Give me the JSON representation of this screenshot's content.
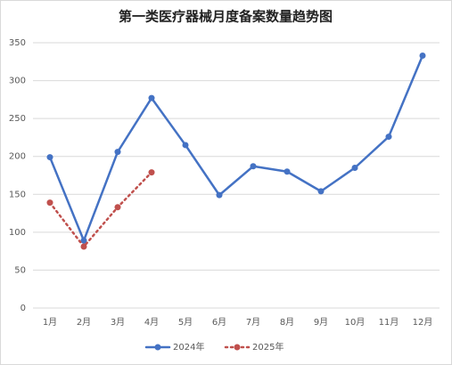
{
  "chart_data": {
    "type": "line",
    "title": "第一类医疗器械月度备案数量趋势图",
    "categories": [
      "1月",
      "2月",
      "3月",
      "4月",
      "5月",
      "6月",
      "7月",
      "8月",
      "9月",
      "10月",
      "11月",
      "12月"
    ],
    "series": [
      {
        "name": "2024年",
        "color": "#4472c4",
        "dash": "solid",
        "values": [
          199,
          89,
          206,
          277,
          215,
          149,
          187,
          180,
          154,
          185,
          226,
          333
        ]
      },
      {
        "name": "2025年",
        "color": "#c0504d",
        "dash": "dotted",
        "values": [
          139,
          81,
          133,
          179,
          null,
          null,
          null,
          null,
          null,
          null,
          null,
          null
        ]
      }
    ],
    "ylim": [
      0,
      350
    ],
    "yticks": [
      0,
      50,
      100,
      150,
      200,
      250,
      300,
      350
    ],
    "grid": true,
    "legend": "bottom"
  }
}
